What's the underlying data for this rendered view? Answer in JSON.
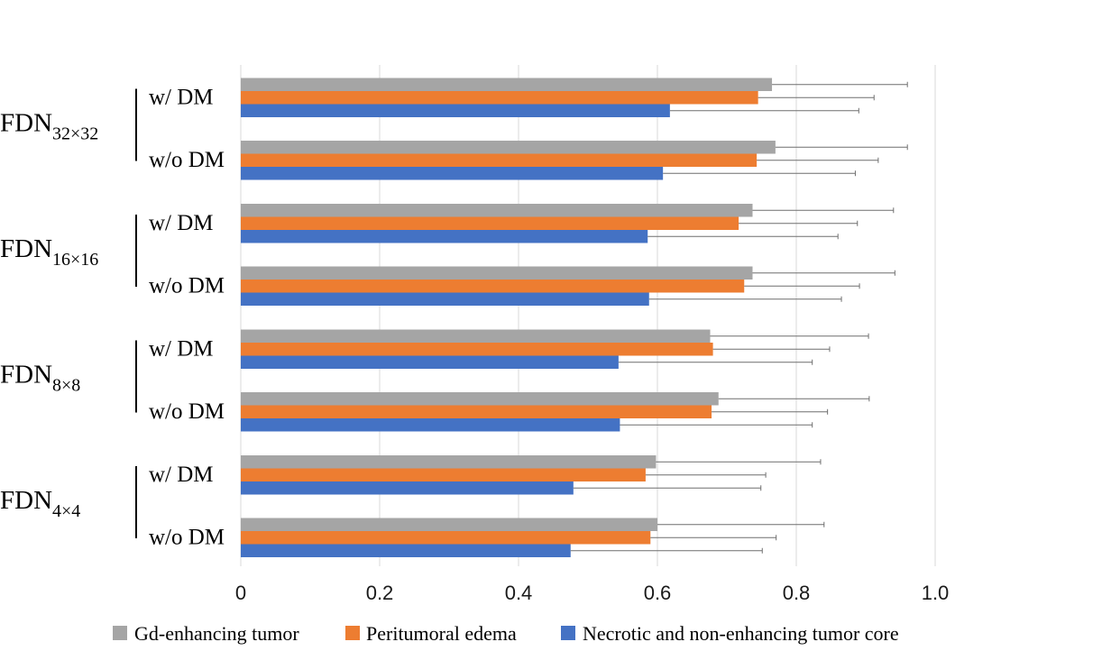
{
  "chart_data": {
    "type": "bar",
    "orientation": "horizontal",
    "xlim": [
      0,
      1.0
    ],
    "x_ticks": [
      "0",
      "0.2",
      "0.4",
      "0.6",
      "0.8",
      "1.0"
    ],
    "x_tick_values": [
      0,
      0.2,
      0.4,
      0.6,
      0.8,
      1.0
    ],
    "grid": true,
    "legend_position": "bottom",
    "series": [
      {
        "name": "Gd-enhancing tumor",
        "color": "#a5a5a5"
      },
      {
        "name": "Peritumoral edema",
        "color": "#ed7d31"
      },
      {
        "name": "Necrotic and non-enhancing tumor core",
        "color": "#4472c4"
      }
    ],
    "groups": [
      {
        "label": "FDN",
        "subscript": "32×32",
        "conditions": [
          {
            "label": "w/ DM",
            "values": [
              0.765,
              0.745,
              0.618
            ],
            "errors": [
              0.195,
              0.167,
              0.272
            ]
          },
          {
            "label": "w/o DM",
            "values": [
              0.77,
              0.743,
              0.608
            ],
            "errors": [
              0.19,
              0.175,
              0.277
            ]
          }
        ]
      },
      {
        "label": "FDN",
        "subscript": "16×16",
        "conditions": [
          {
            "label": "w/ DM",
            "values": [
              0.737,
              0.717,
              0.586
            ],
            "errors": [
              0.203,
              0.171,
              0.274
            ]
          },
          {
            "label": "w/o DM",
            "values": [
              0.737,
              0.725,
              0.588
            ],
            "errors": [
              0.205,
              0.166,
              0.277
            ]
          }
        ]
      },
      {
        "label": "FDN",
        "subscript": "8×8",
        "conditions": [
          {
            "label": "w/ DM",
            "values": [
              0.676,
              0.68,
              0.544
            ],
            "errors": [
              0.228,
              0.168,
              0.279
            ]
          },
          {
            "label": "w/o DM",
            "values": [
              0.688,
              0.678,
              0.546
            ],
            "errors": [
              0.217,
              0.167,
              0.277
            ]
          }
        ]
      },
      {
        "label": "FDN",
        "subscript": "4×4",
        "conditions": [
          {
            "label": "w/ DM",
            "values": [
              0.598,
              0.583,
              0.479
            ],
            "errors": [
              0.237,
              0.173,
              0.27
            ]
          },
          {
            "label": "w/o DM",
            "values": [
              0.6,
              0.59,
              0.475
            ],
            "errors": [
              0.24,
              0.181,
              0.276
            ]
          }
        ]
      }
    ]
  }
}
